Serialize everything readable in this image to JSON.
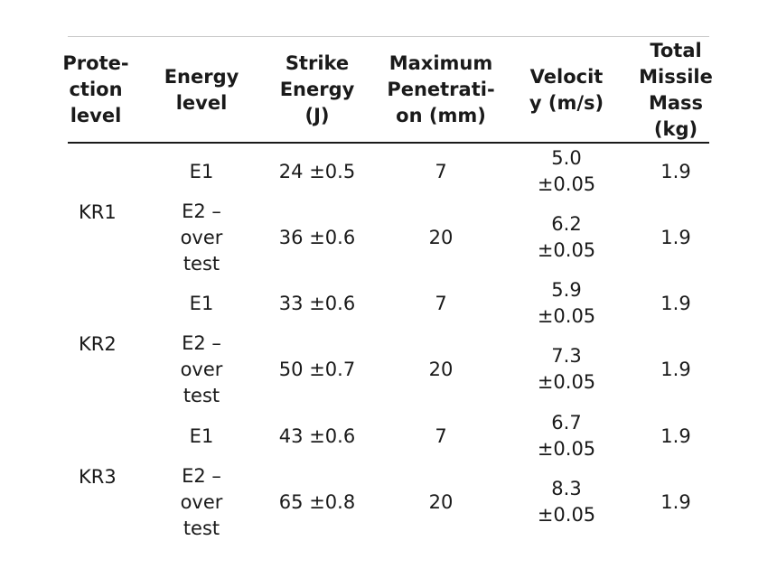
{
  "table": {
    "headers": [
      "Prote-\nction\nlevel",
      "Energy\nlevel",
      "Strike\nEnergy\n(J)",
      "Maximum\nPenetrati-\non (mm)",
      "Velocit\ny (m/s)",
      "Total\nMissile\nMass\n(kg)"
    ],
    "groups": [
      {
        "level": "KR1",
        "rows": [
          {
            "energy_level": "E1",
            "strike_energy": "24 ±0.5",
            "max_penetration": "7",
            "velocity": "5.0\n±0.05",
            "mass": "1.9"
          },
          {
            "energy_level": "E2 –\nover\ntest",
            "strike_energy": "36 ±0.6",
            "max_penetration": "20",
            "velocity": "6.2\n±0.05",
            "mass": "1.9"
          }
        ]
      },
      {
        "level": "KR2",
        "rows": [
          {
            "energy_level": "E1",
            "strike_energy": "33 ±0.6",
            "max_penetration": "7",
            "velocity": "5.9\n±0.05",
            "mass": "1.9"
          },
          {
            "energy_level": "E2 –\nover\ntest",
            "strike_energy": "50 ±0.7",
            "max_penetration": "20",
            "velocity": "7.3\n±0.05",
            "mass": "1.9"
          }
        ]
      },
      {
        "level": "KR3",
        "rows": [
          {
            "energy_level": "E1",
            "strike_energy": "43 ±0.6",
            "max_penetration": "7",
            "velocity": "6.7\n±0.05",
            "mass": "1.9"
          },
          {
            "energy_level": "E2 –\nover\ntest",
            "strike_energy": "65 ±0.8",
            "max_penetration": "20",
            "velocity": "8.3\n±0.05",
            "mass": "1.9"
          }
        ]
      }
    ]
  }
}
